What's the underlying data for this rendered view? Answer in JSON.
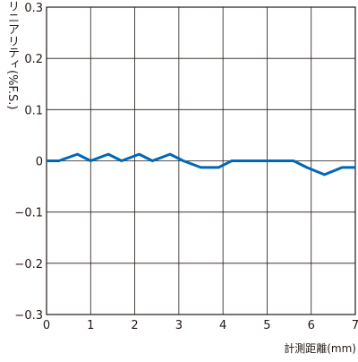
{
  "chart_data": {
    "type": "line",
    "title": "",
    "xlabel": "計測距離(mm)",
    "ylabel": "リニアリティ(%F.S.)",
    "xlim": [
      0,
      7
    ],
    "ylim": [
      -0.3,
      0.3
    ],
    "grid": true,
    "x_ticks": [
      "0",
      "1",
      "2",
      "3",
      "4",
      "5",
      "6",
      "7"
    ],
    "y_ticks": [
      "0.3",
      "0.2",
      "0.1",
      "0",
      "−0.1",
      "−0.2",
      "−0.3"
    ],
    "series": [
      {
        "color": "#0068b7",
        "x": [
          0,
          0.28,
          0.7,
          1.0,
          1.4,
          1.7,
          2.1,
          2.4,
          2.8,
          3.1,
          3.5,
          3.9,
          4.2,
          4.6,
          5.0,
          5.3,
          5.6,
          5.9,
          6.3,
          6.7,
          7.0
        ],
        "y": [
          0,
          0,
          0.013,
          0,
          0.013,
          0,
          0.013,
          0,
          0.013,
          0,
          -0.013,
          -0.013,
          0,
          0,
          0,
          0,
          0,
          -0.013,
          -0.027,
          -0.013,
          -0.013
        ]
      }
    ]
  }
}
